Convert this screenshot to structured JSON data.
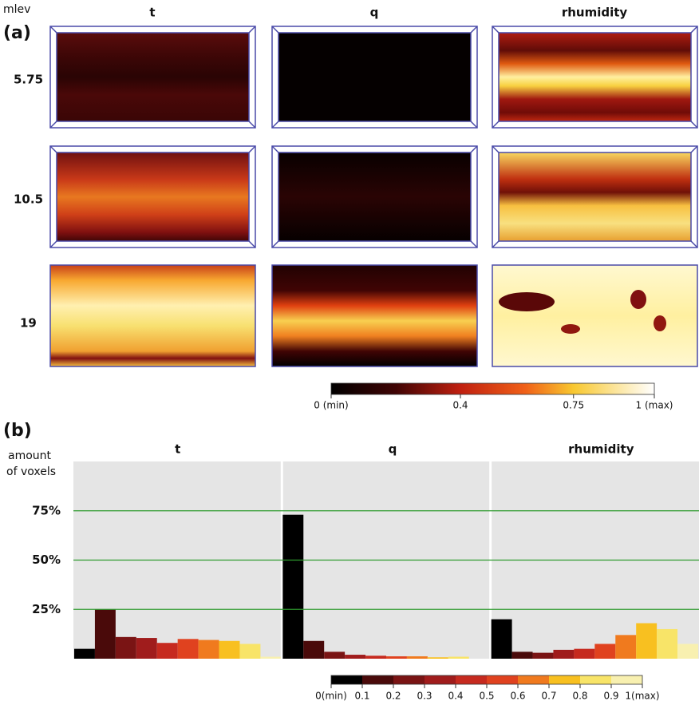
{
  "panel_a": {
    "label": "(a)",
    "row_header": "mlev",
    "columns": [
      "t",
      "q",
      "rhumidity"
    ],
    "rows": [
      "5.75",
      "10.5",
      "19"
    ],
    "colorbar": {
      "xlim": [
        0,
        1
      ],
      "ticks": [
        {
          "value": 0,
          "label": "0 (min)"
        },
        0.4,
        0.75,
        {
          "value": 1,
          "label": "1 (max)"
        }
      ]
    }
  },
  "chart_data": {
    "type": "histogram",
    "panel_label": "(b)",
    "ylabel": [
      "amount",
      "of voxels"
    ],
    "bins": [
      {
        "value": 0,
        "label": "0(min)"
      },
      0.1,
      0.2,
      0.3,
      0.4,
      0.5,
      0.6,
      0.7,
      0.8,
      0.9,
      {
        "value": 1,
        "label": "1(max)"
      }
    ],
    "colors": [
      "#000000",
      "#4a0a0a",
      "#7a1414",
      "#a01c1c",
      "#c62a1f",
      "#e0421f",
      "#f07a1e",
      "#f8c020",
      "#f8e468",
      "#f8f0b0"
    ],
    "panels": [
      {
        "title": "t",
        "values": [
          5,
          25,
          11,
          10.5,
          8,
          10,
          9.5,
          9,
          7.5,
          1
        ]
      },
      {
        "title": "q",
        "values": [
          73,
          9,
          3.5,
          2,
          1.5,
          1.2,
          1.2,
          0.7,
          1,
          0
        ]
      },
      {
        "title": "rhumidity",
        "values": [
          20,
          3.5,
          3,
          4.5,
          5,
          7.5,
          12,
          18,
          15,
          7.5
        ]
      }
    ],
    "ylim": [
      0,
      100
    ],
    "yticks": [
      {
        "value": 25,
        "label": "25%"
      },
      {
        "value": 50,
        "label": "50%"
      },
      {
        "value": 75,
        "label": "75%"
      }
    ],
    "grid": true,
    "grid_color": "#2e9a2e"
  }
}
